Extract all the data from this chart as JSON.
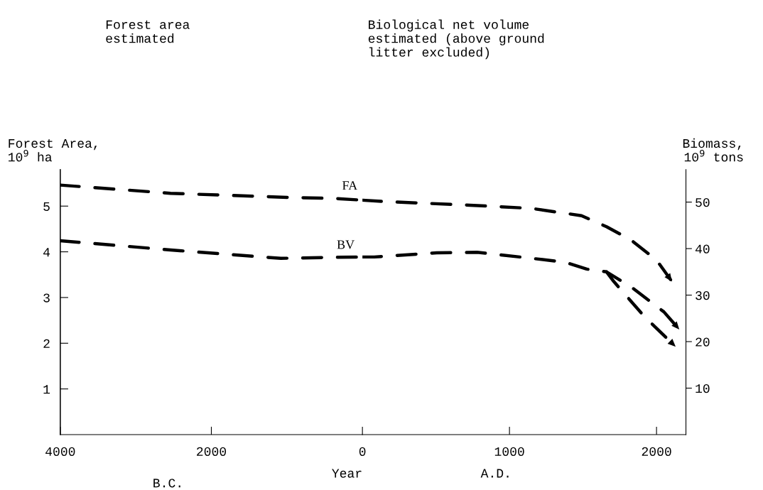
{
  "chart_data": [
    {
      "type": "line",
      "ylabel": "Forest Area,\n10$^{9}$ ha",
      "xlabel": "Year",
      "annotations": [
        "Forest area\nestimated",
        "B.C."
      ],
      "xlim": [
        -4000,
        0
      ],
      "xticks": [
        {
          "value": -4000,
          "label": "4000"
        },
        {
          "value": -2000,
          "label": "2000"
        }
      ],
      "ylim": [
        0,
        5.8
      ],
      "yticks": [
        1,
        2,
        3,
        4,
        5
      ],
      "y2lim": [
        0,
        57
      ],
      "line_style": "dashed",
      "marker": "none",
      "grid": false,
      "legend": false,
      "series": [
        {
          "name": "FA",
          "color": "#000000",
          "x": [
            -4000,
            -2540,
            -990,
            -400,
            0
          ],
          "values": [
            5.46,
            5.28,
            5.19,
            5.17,
            5.13
          ]
        },
        {
          "name": "BV",
          "axis": "y2",
          "color": "#000000",
          "x": [
            -4000,
            -2540,
            -1080,
            -470,
            0
          ],
          "values": [
            41.7,
            39.7,
            37.9,
            38.1,
            38.2
          ]
        }
      ]
    },
    {
      "type": "line",
      "y2label": "Biomass,\n10$^{9}$ tons",
      "annotations": [
        "Biological net volume\nestimated (above ground\nlitter excluded)",
        "A.D."
      ],
      "xlim": [
        0,
        2200
      ],
      "xticks": [
        0,
        1000,
        2000
      ],
      "ylim": [
        0,
        5.8
      ],
      "y2lim": [
        0,
        57
      ],
      "y2ticks": [
        10,
        20,
        30,
        40,
        50
      ],
      "line_style": "dashed",
      "marker": "none",
      "grid": false,
      "legend": false,
      "series": [
        {
          "color": "#000000",
          "x": [
            0,
            150,
            730,
            1150,
            1490,
            1660,
            1830,
            2000,
            2105
          ],
          "values": [
            5.13,
            5.1,
            5.02,
            4.95,
            4.79,
            4.55,
            4.25,
            3.82,
            3.35
          ]
        },
        {
          "axis": "y2",
          "color": "#000000",
          "x": [
            0,
            80,
            505,
            780,
            1070,
            1375,
            1525,
            1660,
            1830,
            2050,
            2155
          ],
          "values": [
            38.2,
            38.2,
            39.1,
            39.2,
            38.2,
            37.1,
            35.6,
            35.0,
            31.7,
            26.4,
            22.6
          ]
        },
        {
          "axis": "y2",
          "color": "#000000",
          "x": [
            1660,
            1710,
            1920,
            2130
          ],
          "values": [
            35.0,
            32.9,
            25.3,
            18.9
          ]
        }
      ]
    }
  ]
}
